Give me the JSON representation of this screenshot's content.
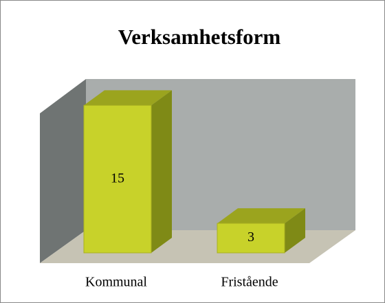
{
  "chart_data": {
    "type": "bar3d",
    "title": "Verksamhetsform",
    "categories": [
      "Kommunal",
      "Fristående"
    ],
    "values": [
      15,
      3
    ],
    "color": "#c8d22a",
    "ylim": [
      0,
      16
    ]
  }
}
